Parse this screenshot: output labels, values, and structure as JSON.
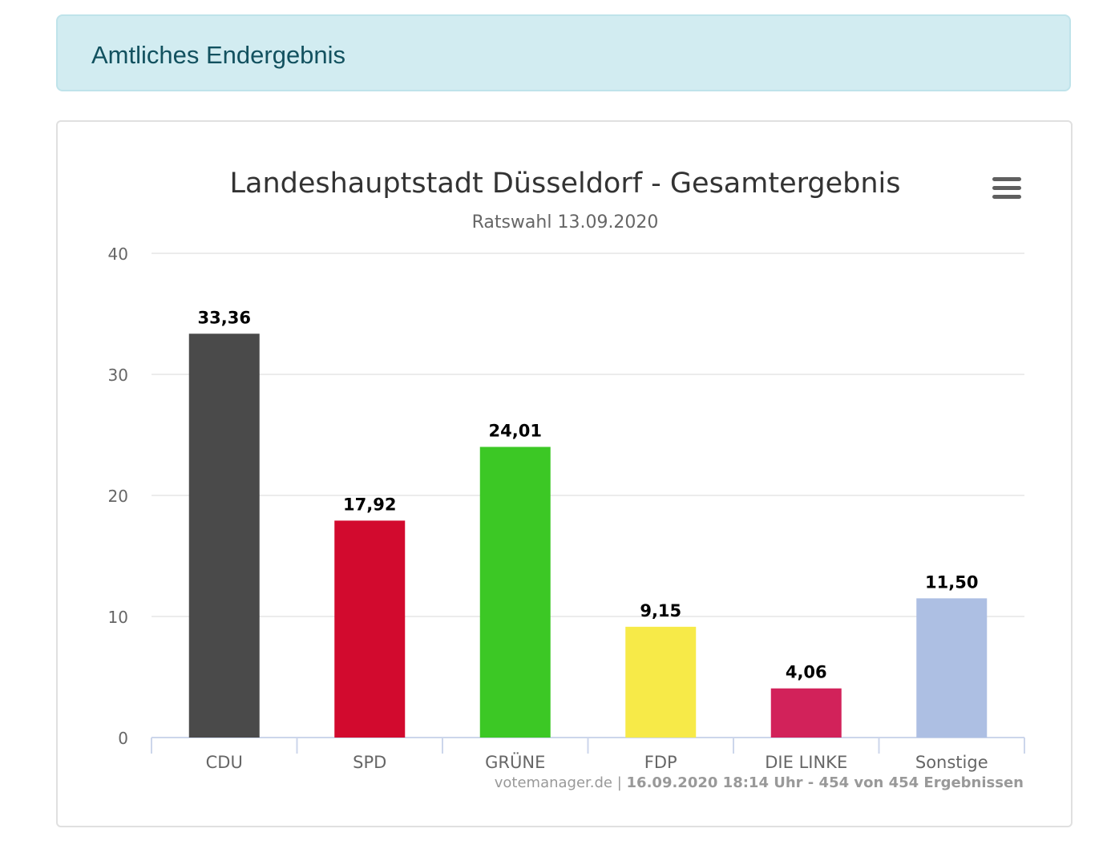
{
  "alert": {
    "text": "Amtliches Endergebnis"
  },
  "chart_data": {
    "type": "bar",
    "title": "Landeshauptstadt Düsseldorf - Gesamtergebnis",
    "subtitle": "Ratswahl 13.09.2020",
    "categories": [
      "CDU",
      "SPD",
      "GRÜNE",
      "FDP",
      "DIE LINKE",
      "Sonstige"
    ],
    "values": [
      33.36,
      17.92,
      24.01,
      9.15,
      4.06,
      11.5
    ],
    "data_labels": [
      "33,36",
      "17,92",
      "24,01",
      "9,15",
      "4,06",
      "11,50"
    ],
    "colors": [
      "#4a4a4a",
      "#d20a2e",
      "#3cc825",
      "#f7ea48",
      "#d2225a",
      "#adbfe3"
    ],
    "yticks": [
      0,
      10,
      20,
      30,
      40
    ],
    "ylim": [
      0,
      40
    ],
    "grid": true,
    "legend": "none",
    "credits": {
      "source": "votemanager.de",
      "separator": " | ",
      "detail": "16.09.2020 18:14 Uhr - 454 von 454 Ergebnissen"
    }
  },
  "menu": {
    "icon": "hamburger-menu-icon"
  }
}
